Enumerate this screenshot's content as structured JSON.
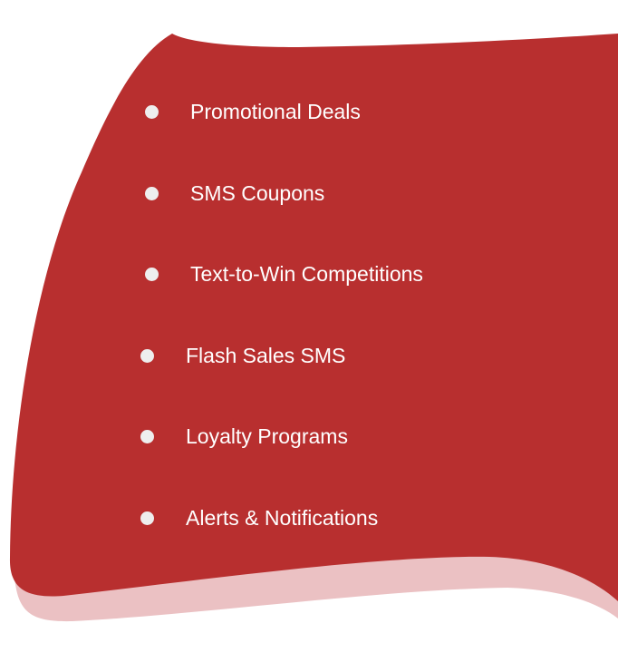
{
  "colors": {
    "panel": "#b82f2f",
    "shadow": "#ebc1c3",
    "bullet": "#eeeeee",
    "text": "#ffffff",
    "background": "#ffffff"
  },
  "features": [
    {
      "label": "Promotional Deals",
      "icon": "bullet-dot"
    },
    {
      "label": "SMS Coupons",
      "icon": "bullet-dot"
    },
    {
      "label": "Text-to-Win Competitions",
      "icon": "bullet-dot"
    },
    {
      "label": "Flash Sales SMS",
      "icon": "bullet-dot"
    },
    {
      "label": "Loyalty Programs",
      "icon": "bullet-dot"
    },
    {
      "label": "Alerts & Notifications",
      "icon": "bullet-dot"
    }
  ]
}
